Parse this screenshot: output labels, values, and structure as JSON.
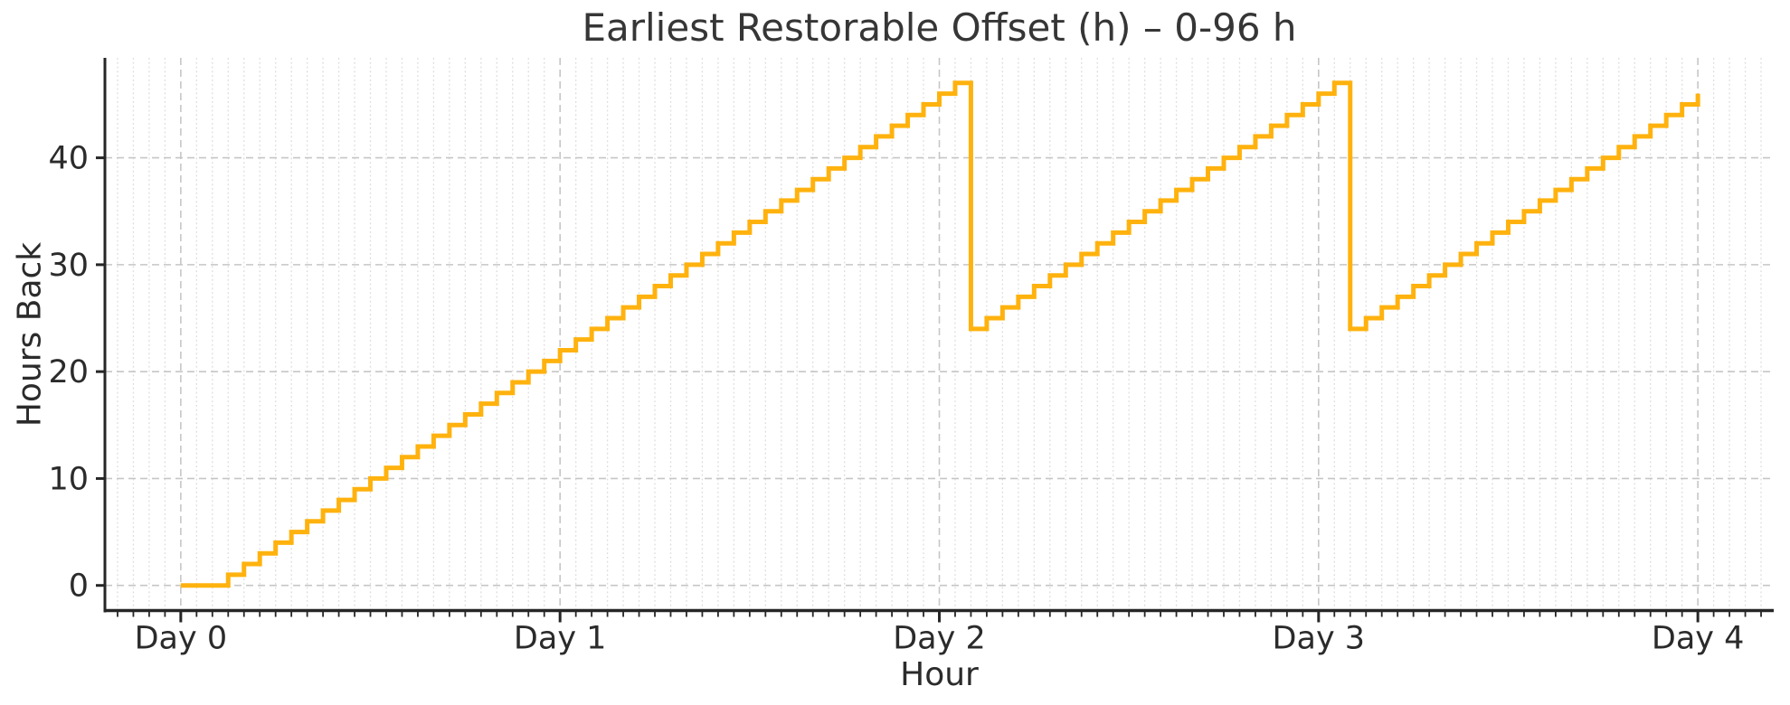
{
  "chart_data": {
    "type": "line",
    "subtype": "step-post",
    "title": "Earliest Restorable Offset (h) – 0-96 h",
    "xlabel": "Hour",
    "ylabel": "Hours Back",
    "legend": "none",
    "xlim_hours": [
      -4.8,
      100.8
    ],
    "ylim": [
      -2.35,
      49.35
    ],
    "x_major_ticks": [
      {
        "hour": 0,
        "label": "Day 0"
      },
      {
        "hour": 24,
        "label": "Day 1"
      },
      {
        "hour": 48,
        "label": "Day 2"
      },
      {
        "hour": 72,
        "label": "Day 3"
      },
      {
        "hour": 96,
        "label": "Day 4"
      }
    ],
    "x_minor_tick_every_hours": 1,
    "y_ticks": [
      {
        "value": 0,
        "label": "0"
      },
      {
        "value": 10,
        "label": "10"
      },
      {
        "value": 20,
        "label": "20"
      },
      {
        "value": 30,
        "label": "30"
      },
      {
        "value": 40,
        "label": "40"
      }
    ],
    "grid": {
      "x_major_dashed": true,
      "x_minor_dotted": true,
      "y_major_dashed": true,
      "y_minor": false
    },
    "series": [
      {
        "name": "Earliest Restorable Offset (h)",
        "color": "#FFB20E",
        "line_width": 5,
        "x_start_hour": 0,
        "x_step_hours": 1,
        "values": [
          0,
          0,
          0,
          1,
          2,
          3,
          4,
          5,
          6,
          7,
          8,
          9,
          10,
          11,
          12,
          13,
          14,
          15,
          16,
          17,
          18,
          19,
          20,
          21,
          22,
          23,
          24,
          25,
          26,
          27,
          28,
          29,
          30,
          31,
          32,
          33,
          34,
          35,
          36,
          37,
          38,
          39,
          40,
          41,
          42,
          43,
          44,
          45,
          46,
          47,
          24,
          25,
          26,
          27,
          28,
          29,
          30,
          31,
          32,
          33,
          34,
          35,
          36,
          37,
          38,
          39,
          40,
          41,
          42,
          43,
          44,
          45,
          46,
          47,
          24,
          25,
          26,
          27,
          28,
          29,
          30,
          31,
          32,
          33,
          34,
          35,
          36,
          37,
          38,
          39,
          40,
          41,
          42,
          43,
          44,
          45,
          46
        ]
      }
    ]
  },
  "colors": {
    "background": "#ffffff",
    "line": "#FFB20E",
    "grid_major": "#c6c6c6",
    "grid_minor": "#dcdcdc",
    "axis": "#262626",
    "tick_text": "#2b2b2b",
    "title_text": "#363636"
  }
}
